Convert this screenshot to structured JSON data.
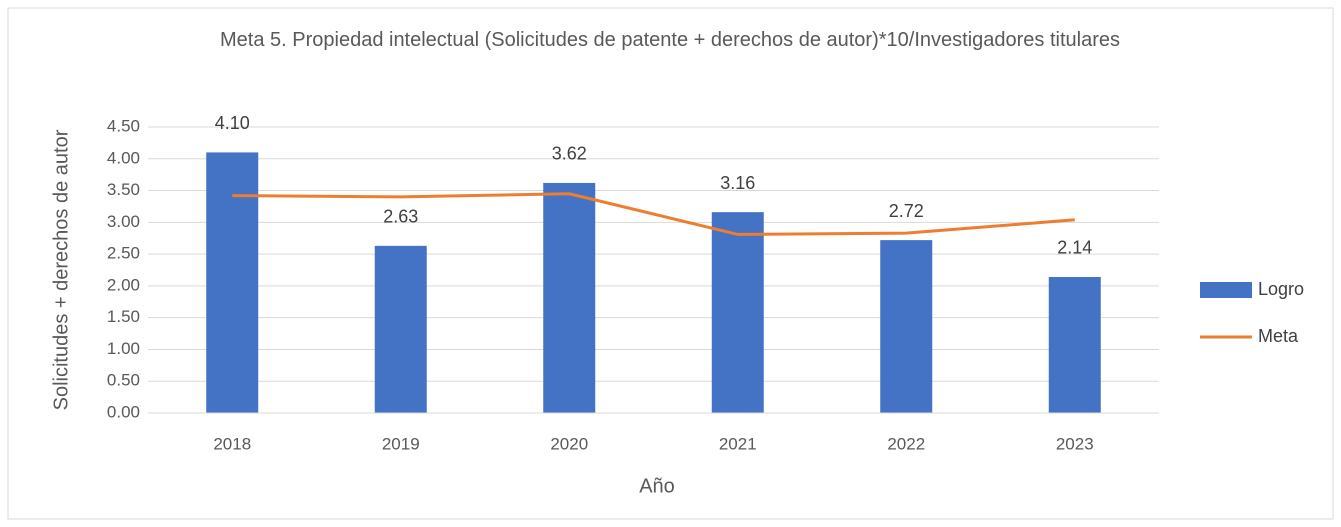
{
  "chart_data": {
    "type": "bar",
    "title": "Meta 5. Propiedad intelectual (Solicitudes de patente + derechos de autor)*10/Investigadores titulares",
    "x_label": "Año",
    "y_label": "Solicitudes + derechos de autor",
    "categories": [
      "2018",
      "2019",
      "2020",
      "2021",
      "2022",
      "2023"
    ],
    "series": [
      {
        "name": "Logro",
        "type": "bar",
        "color": "#4472c4",
        "values": [
          4.1,
          2.63,
          3.62,
          3.16,
          2.72,
          2.14
        ],
        "value_labels": [
          "4.10",
          "2.63",
          "3.62",
          "3.16",
          "2.72",
          "2.14"
        ]
      },
      {
        "name": "Meta",
        "type": "line",
        "color": "#ed7d31",
        "values": [
          3.42,
          3.4,
          3.45,
          2.81,
          2.83,
          3.04
        ]
      }
    ],
    "ylim": [
      0,
      4.5
    ],
    "yticks": [
      {
        "value": 0,
        "label": "0.00"
      },
      {
        "value": 0.5,
        "label": "0.50"
      },
      {
        "value": 1,
        "label": "1.00"
      },
      {
        "value": 1.5,
        "label": "1.50"
      },
      {
        "value": 2,
        "label": "2.00"
      },
      {
        "value": 2.5,
        "label": "2.50"
      },
      {
        "value": 3,
        "label": "3.00"
      },
      {
        "value": 3.5,
        "label": "3.50"
      },
      {
        "value": 4,
        "label": "4.00"
      },
      {
        "value": 4.5,
        "label": "4.50"
      }
    ],
    "grid": true,
    "legend": "right"
  }
}
